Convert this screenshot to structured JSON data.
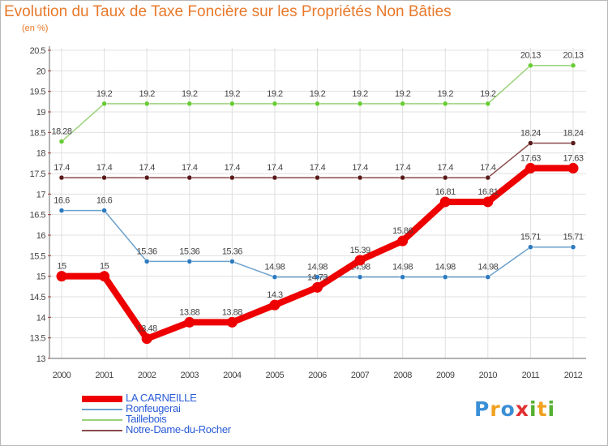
{
  "chart_data": {
    "type": "line",
    "title": "Evolution du Taux de Taxe Foncière sur les Propriétés Non Bâties",
    "ylabel": "(en %)",
    "xlabel": "",
    "categories": [
      "2000",
      "2001",
      "2002",
      "2003",
      "2004",
      "2005",
      "2006",
      "2007",
      "2008",
      "2009",
      "2010",
      "2011",
      "2012"
    ],
    "ylim": [
      13,
      20.5
    ],
    "yticks": [
      13,
      13.5,
      14,
      14.5,
      15,
      15.5,
      16,
      16.5,
      17,
      17.5,
      18,
      18.5,
      19,
      19.5,
      20,
      20.5
    ],
    "grid": true,
    "series": [
      {
        "name": "Ronfeugerai",
        "color": "#6aa0cc",
        "marker": "#2c7ac0",
        "width": 1.5,
        "values": [
          16.6,
          16.6,
          15.36,
          15.36,
          15.36,
          14.98,
          14.98,
          14.98,
          14.98,
          14.98,
          14.98,
          15.71,
          15.71
        ]
      },
      {
        "name": "Taillebois",
        "color": "#9bd27a",
        "marker": "#66cc33",
        "width": 1.5,
        "values": [
          18.28,
          19.2,
          19.2,
          19.2,
          19.2,
          19.2,
          19.2,
          19.2,
          19.2,
          19.2,
          19.2,
          20.13,
          20.13
        ]
      },
      {
        "name": "Notre-Dame-du-Rocher",
        "color": "#8a4b4b",
        "marker": "#5a1a1a",
        "width": 1.5,
        "values": [
          17.4,
          17.4,
          17.4,
          17.4,
          17.4,
          17.4,
          17.4,
          17.4,
          17.4,
          17.4,
          17.4,
          18.24,
          18.24
        ]
      },
      {
        "name": "LA CARNEILLE",
        "color": "#ee0000",
        "marker": "#ee0000",
        "width": 8,
        "values": [
          15,
          15,
          13.48,
          13.88,
          13.88,
          14.3,
          14.73,
          15.39,
          15.86,
          16.81,
          16.81,
          17.63,
          17.63
        ]
      }
    ]
  },
  "legend": {
    "items": [
      {
        "label": "LA CARNEILLE",
        "color": "#ee0000",
        "thickness": 8
      },
      {
        "label": "Ronfeugerai",
        "color": "#6aa0cc",
        "thickness": 2
      },
      {
        "label": "Taillebois",
        "color": "#9bd27a",
        "thickness": 2
      },
      {
        "label": "Notre-Dame-du-Rocher",
        "color": "#8a4b4b",
        "thickness": 2
      }
    ]
  },
  "logo": {
    "text": "Proxiti",
    "letters": [
      {
        "ch": "P",
        "color": "#3a8fd6"
      },
      {
        "ch": "r",
        "color": "#f0a020"
      },
      {
        "ch": "o",
        "color": "#3a8fd6"
      },
      {
        "ch": "x",
        "color": "#e03030"
      },
      {
        "ch": "i",
        "color": "#55b030"
      },
      {
        "ch": "t",
        "color": "#f0a020"
      },
      {
        "ch": "i",
        "color": "#55b030"
      }
    ]
  }
}
